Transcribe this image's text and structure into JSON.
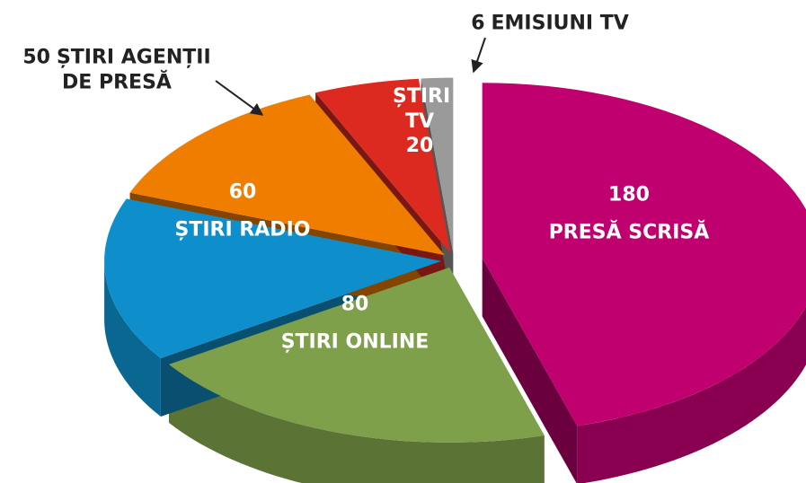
{
  "chart_data": {
    "type": "pie",
    "categories": [
      "PRESĂ SCRISĂ",
      "ȘTIRI ONLINE",
      "ȘTIRI RADIO",
      "ȘTIRI AGENȚII DE PRESĂ",
      "ȘTIRI TV",
      "EMISIUNI TV"
    ],
    "values": [
      180,
      80,
      60,
      50,
      20,
      6
    ],
    "colors": [
      "#c0006f",
      "#7ea04a",
      "#0e8fcb",
      "#ee7d00",
      "#dc2a20",
      "#9a9a9a"
    ]
  }
}
